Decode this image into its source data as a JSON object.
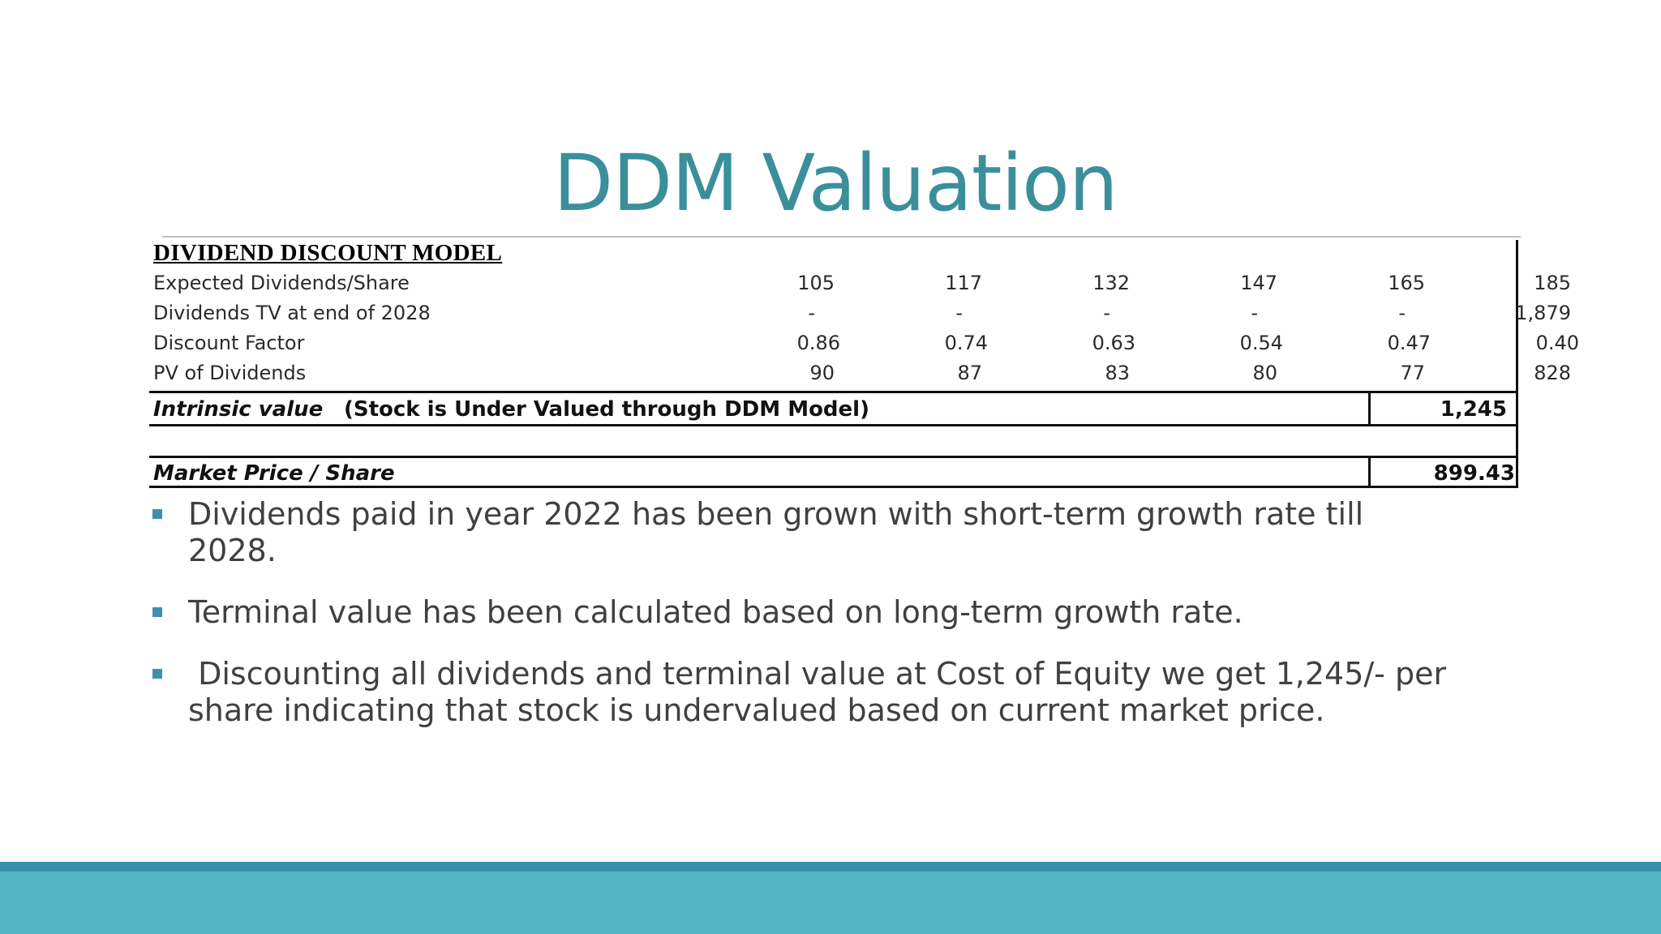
{
  "slide": {
    "title": "DDM Valuation"
  },
  "table": {
    "heading": "DIVIDEND DISCOUNT MODEL",
    "rows": [
      {
        "label": "Expected Dividends/Share",
        "values": [
          "105",
          "117",
          "132",
          "147",
          "165",
          "185"
        ]
      },
      {
        "label": "Dividends TV at end of 2028",
        "values": [
          "-",
          "-",
          "-",
          "-",
          "-",
          "1,879"
        ]
      },
      {
        "label": "Discount Factor",
        "values": [
          "0.86",
          "0.74",
          "0.63",
          "0.54",
          "0.47",
          "0.40"
        ]
      },
      {
        "label": "PV of Dividends",
        "values": [
          "90",
          "87",
          "83",
          "80",
          "77",
          "828"
        ]
      }
    ],
    "intrinsic": {
      "label": "Intrinsic value",
      "note": "(Stock is Under Valued through DDM Model)",
      "value": "1,245"
    },
    "market": {
      "label": "Market Price / Share",
      "value": "899.43"
    }
  },
  "bullets": [
    "Dividends paid in year 2022 has been grown with short-term growth rate till 2028.",
    "Terminal value has been calculated based on long-term growth rate.",
    " Discounting all dividends and terminal value at Cost of Equity we get 1,245/- per share indicating that stock is undervalued based on current market price."
  ],
  "colors": {
    "title": "#3a8f9a",
    "bullet_marker": "#3e8fb0",
    "footer_band": "#58b5c4",
    "footer_stripe": "#3890ae"
  }
}
